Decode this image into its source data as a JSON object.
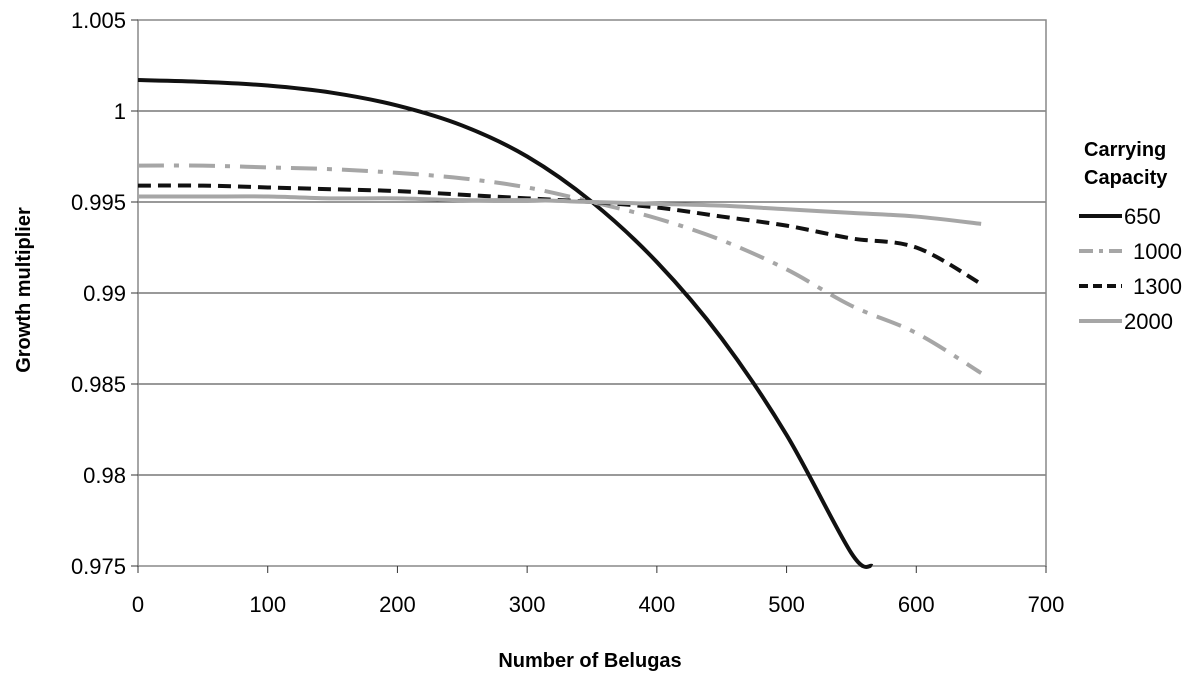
{
  "chart_data": {
    "type": "line",
    "xlabel": "Number of Belugas",
    "ylabel": "Growth multiplier",
    "xlim": [
      0,
      700
    ],
    "ylim": [
      0.975,
      1.005
    ],
    "x_ticks": [
      "0",
      "100",
      "200",
      "300",
      "400",
      "500",
      "600",
      "700"
    ],
    "y_ticks": [
      "0.975",
      "0.98",
      "0.985",
      "0.99",
      "0.995",
      "1",
      "1.005"
    ],
    "grid": "horizontal",
    "legend": {
      "title_lines": [
        "Carrying",
        "Capacity"
      ],
      "position": "right"
    },
    "x": [
      0,
      50,
      100,
      150,
      200,
      250,
      300,
      350,
      400,
      450,
      500,
      550,
      566,
      600,
      650
    ],
    "series": [
      {
        "name": "650",
        "color": "#111111",
        "dash": "solid",
        "values": [
          1.0017,
          1.0016,
          1.0014,
          1.001,
          1.0003,
          0.9992,
          0.9975,
          0.995,
          0.9917,
          0.9875,
          0.9822,
          0.9757,
          0.975,
          null,
          null
        ]
      },
      {
        "name": "1000",
        "color": "#a6a6a6",
        "dash": "dash-dot",
        "values": [
          0.997,
          0.997,
          0.9969,
          0.9968,
          0.9966,
          0.9963,
          0.9958,
          0.995,
          0.9941,
          0.9929,
          0.9913,
          0.9893,
          null,
          0.9878,
          0.9856
        ]
      },
      {
        "name": "1300",
        "color": "#111111",
        "dash": "dashed",
        "values": [
          0.9959,
          0.9959,
          0.9958,
          0.9957,
          0.9956,
          0.9954,
          0.9952,
          0.995,
          0.9947,
          0.9942,
          0.9937,
          0.993,
          null,
          0.9925,
          0.9905
        ]
      },
      {
        "name": "2000",
        "color": "#a6a6a6",
        "dash": "solid",
        "values": [
          0.9953,
          0.9953,
          0.9953,
          0.9952,
          0.9952,
          0.9951,
          0.9951,
          0.995,
          0.9949,
          0.9948,
          0.9946,
          0.9944,
          null,
          0.9942,
          0.9938
        ]
      }
    ]
  }
}
